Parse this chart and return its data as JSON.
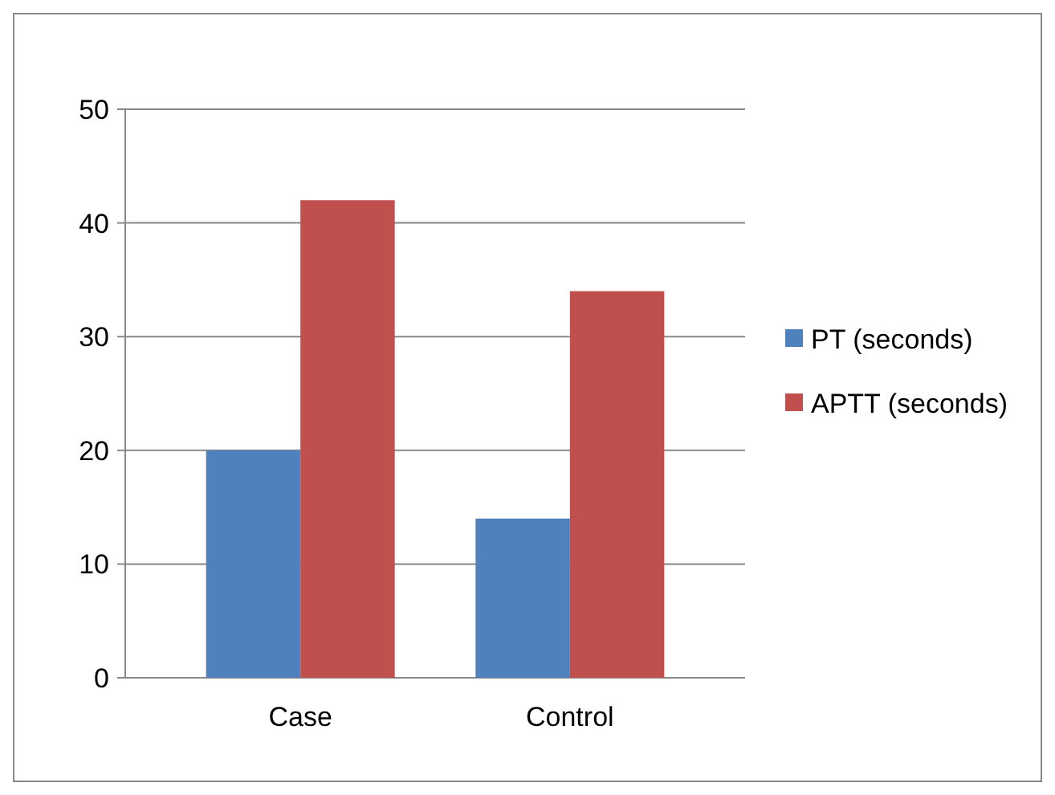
{
  "chart_data": {
    "type": "bar",
    "categories": [
      "Case",
      "Control"
    ],
    "series": [
      {
        "name": "PT (seconds)",
        "color": "#4f81bd",
        "values": [
          20,
          14
        ]
      },
      {
        "name": "APTT (seconds)",
        "color": "#c0504d",
        "values": [
          42,
          34
        ]
      }
    ],
    "ylim": [
      0,
      50
    ],
    "yticks": [
      0,
      10,
      20,
      30,
      40,
      50
    ],
    "grid": "y",
    "legend": "right"
  }
}
